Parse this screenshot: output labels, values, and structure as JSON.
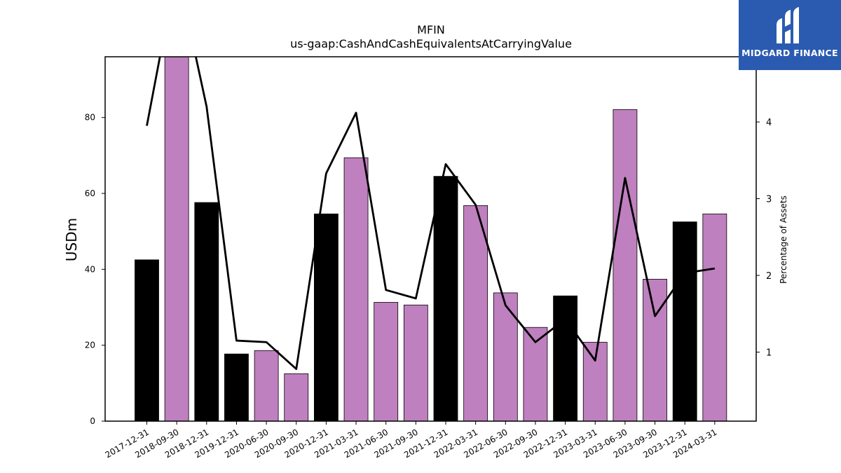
{
  "chart_data": {
    "type": "bar",
    "title": "MFIN",
    "subtitle": "us-gaap:CashAndCashEquivalentsAtCarryingValue",
    "ylabel": "USDm",
    "ylabel_right": "Percentage of Assets",
    "categories": [
      "2017-12-31",
      "2018-09-30",
      "2018-12-31",
      "2019-12-31",
      "2020-06-30",
      "2020-09-30",
      "2020-12-31",
      "2021-03-31",
      "2021-06-30",
      "2021-09-30",
      "2021-12-31",
      "2022-03-31",
      "2022-06-30",
      "2022-09-30",
      "2022-12-31",
      "2023-03-31",
      "2023-06-30",
      "2023-09-30",
      "2023-12-31",
      "2024-03-31"
    ],
    "series": [
      {
        "type": "bar",
        "axis": "left",
        "values": [
          42.5,
          96,
          57.6,
          17.7,
          18.6,
          12.5,
          54.6,
          69.4,
          31.3,
          30.6,
          64.5,
          56.8,
          33.8,
          24.7,
          33.0,
          20.8,
          82.1,
          37.4,
          52.5,
          54.6
        ],
        "colors": [
          "#000000",
          "#bf80bf",
          "#000000",
          "#000000",
          "#bf80bf",
          "#bf80bf",
          "#000000",
          "#bf80bf",
          "#bf80bf",
          "#bf80bf",
          "#000000",
          "#bf80bf",
          "#bf80bf",
          "#bf80bf",
          "#000000",
          "#bf80bf",
          "#bf80bf",
          "#bf80bf",
          "#000000",
          "#bf80bf"
        ]
      },
      {
        "type": "line",
        "axis": "right",
        "color": "#000000",
        "values": [
          3.95,
          6.0,
          4.2,
          1.15,
          1.13,
          0.78,
          3.33,
          4.12,
          1.81,
          1.7,
          3.45,
          2.92,
          1.61,
          1.13,
          1.43,
          0.89,
          3.27,
          1.47,
          2.03,
          2.09
        ]
      }
    ],
    "ylim": [
      0,
      96
    ],
    "yticks": [
      0,
      20,
      40,
      60,
      80
    ],
    "ylim_right": [
      0.1,
      4.85
    ],
    "yticks_right": [
      1,
      2,
      3,
      4
    ],
    "grid": false
  },
  "logo": {
    "text": "MIDGARD FINANCE",
    "background": "#2b5bb0"
  }
}
